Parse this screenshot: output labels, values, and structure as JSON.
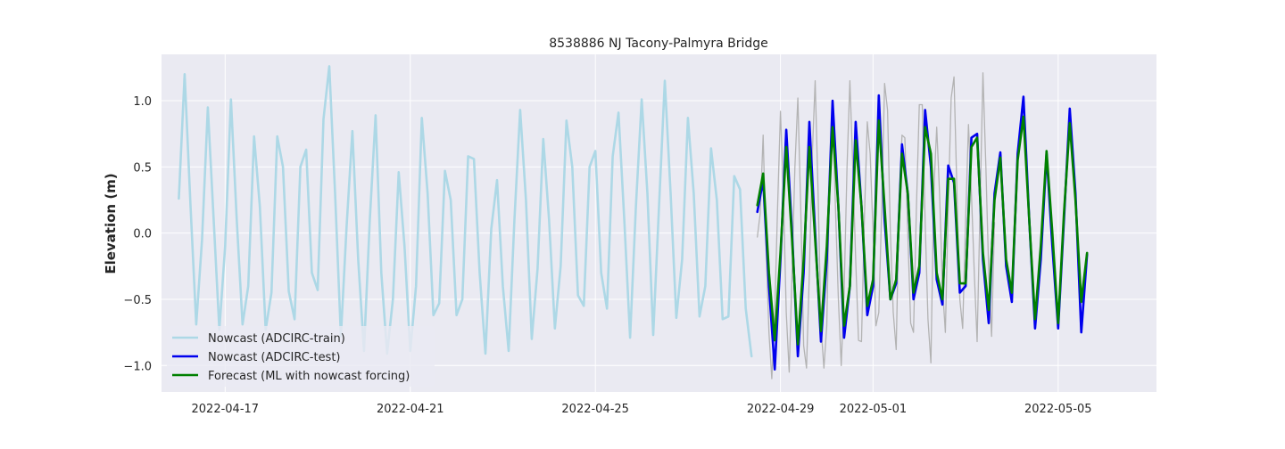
{
  "chart_data": {
    "type": "line",
    "title": "8538886 NJ Tacony-Palmyra Bridge",
    "xlabel": "",
    "ylabel": "Elevation (m)",
    "ylim": [
      -1.2,
      1.35
    ],
    "xlim": [
      "2022-04-15T15:00",
      "2022-05-07T03:00"
    ],
    "grid": true,
    "legend_position": "lower-left",
    "x_ticks": [
      "2022-04-17",
      "2022-04-21",
      "2022-04-25",
      "2022-04-29",
      "2022-05-01",
      "2022-05-05"
    ],
    "y_ticks": [
      -1.0,
      -0.5,
      0.0,
      0.5,
      1.0
    ],
    "y_tick_labels": [
      "−1.0",
      "−0.5",
      "0.0",
      "0.5",
      "1.0"
    ],
    "series": [
      {
        "name": "Nowcast (ADCIRC-train)",
        "color": "#add8e6",
        "start": "2022-04-16T00:00",
        "step_hours": 3,
        "values": [
          0.26,
          1.2,
          0.22,
          -0.69,
          -0.05,
          0.95,
          0.12,
          -0.73,
          -0.1,
          1.01,
          0.1,
          -0.69,
          -0.4,
          0.73,
          0.2,
          -0.73,
          -0.45,
          0.73,
          0.5,
          -0.44,
          -0.65,
          0.5,
          0.63,
          -0.3,
          -0.43,
          0.86,
          1.26,
          0.3,
          -0.78,
          0.05,
          0.77,
          -0.2,
          -0.89,
          0.1,
          0.89,
          -0.3,
          -0.91,
          -0.5,
          0.46,
          -0.1,
          -0.89,
          -0.4,
          0.87,
          0.3,
          -0.62,
          -0.53,
          0.47,
          0.25,
          -0.62,
          -0.5,
          0.58,
          0.56,
          -0.3,
          -0.91,
          0.03,
          0.4,
          -0.4,
          -0.89,
          0.09,
          0.93,
          0.25,
          -0.8,
          -0.27,
          0.71,
          0.1,
          -0.72,
          -0.25,
          0.85,
          0.5,
          -0.47,
          -0.55,
          0.5,
          0.62,
          -0.3,
          -0.57,
          0.58,
          0.91,
          0.1,
          -0.79,
          0.2,
          1.01,
          0.3,
          -0.77,
          0.2,
          1.15,
          0.3,
          -0.64,
          -0.2,
          0.87,
          0.3,
          -0.63,
          -0.4,
          0.64,
          0.25,
          -0.65,
          -0.63,
          0.43,
          0.33,
          -0.57,
          -0.93
        ]
      },
      {
        "name": "",
        "color": "#b3b3b3",
        "start": "2022-04-28T12:00",
        "step_hours": 1.5,
        "values": [
          -0.03,
          0.15,
          0.74,
          -0.1,
          -0.75,
          -1.1,
          -0.6,
          0.2,
          0.92,
          0.3,
          -0.6,
          -1.05,
          -0.3,
          0.5,
          1.02,
          0.2,
          -0.85,
          -1.02,
          -0.3,
          0.6,
          1.15,
          0.3,
          -0.7,
          -1.02,
          -0.7,
          0.4,
          0.98,
          0.2,
          -0.5,
          -1.0,
          -0.45,
          0.5,
          1.15,
          0.5,
          -0.2,
          -0.81,
          -0.82,
          0.1,
          0.84,
          0.6,
          0.0,
          -0.7,
          -0.6,
          0.2,
          1.13,
          0.93,
          0.0,
          -0.6,
          -0.88,
          0.2,
          0.74,
          0.72,
          0.0,
          -0.68,
          -0.75,
          0.2,
          0.97,
          0.97,
          0.1,
          -0.65,
          -0.98,
          0.3,
          0.8,
          0.3,
          -0.4,
          -0.75,
          0.2,
          1.02,
          1.18,
          0.3,
          -0.5,
          -0.72,
          0.1,
          0.82,
          0.3,
          -0.3,
          -0.82,
          0.2,
          1.21,
          0.5,
          -0.3,
          -0.78,
          0.08
        ]
      },
      {
        "name": "Nowcast (ADCIRC-test)",
        "color": "#0000ee",
        "start": "2022-04-28T12:00",
        "step_hours": 3,
        "values": [
          0.16,
          0.4,
          -0.4,
          -1.03,
          -0.2,
          0.78,
          0.0,
          -0.93,
          -0.3,
          0.84,
          0.0,
          -0.82,
          -0.2,
          1.0,
          0.2,
          -0.79,
          -0.4,
          0.84,
          0.2,
          -0.62,
          -0.4,
          1.04,
          0.1,
          -0.5,
          -0.38,
          0.67,
          0.3,
          -0.5,
          -0.3,
          0.93,
          0.5,
          -0.35,
          -0.54,
          0.51,
          0.38,
          -0.45,
          -0.4,
          0.72,
          0.75,
          -0.2,
          -0.68,
          0.3,
          0.61,
          -0.25,
          -0.52,
          0.6,
          1.03,
          0.1,
          -0.72,
          -0.2,
          0.6,
          -0.1,
          -0.72,
          0.1,
          0.94,
          0.3,
          -0.75,
          -0.16
        ]
      },
      {
        "name": "Forecast (ML with nowcast forcing)",
        "color": "#008000",
        "start": "2022-04-28T12:00",
        "step_hours": 3,
        "values": [
          0.21,
          0.45,
          -0.3,
          -0.81,
          -0.15,
          0.65,
          -0.05,
          -0.84,
          -0.2,
          0.65,
          -0.05,
          -0.74,
          -0.1,
          0.8,
          0.2,
          -0.7,
          -0.4,
          0.7,
          0.2,
          -0.55,
          -0.35,
          0.85,
          0.2,
          -0.5,
          -0.35,
          0.6,
          0.3,
          -0.45,
          -0.25,
          0.8,
          0.6,
          -0.3,
          -0.5,
          0.41,
          0.41,
          -0.38,
          -0.38,
          0.65,
          0.72,
          -0.15,
          -0.58,
          0.25,
          0.57,
          -0.2,
          -0.45,
          0.55,
          0.88,
          0.1,
          -0.65,
          -0.1,
          0.62,
          0.0,
          -0.68,
          0.15,
          0.83,
          0.25,
          -0.52,
          -0.15
        ]
      }
    ]
  }
}
